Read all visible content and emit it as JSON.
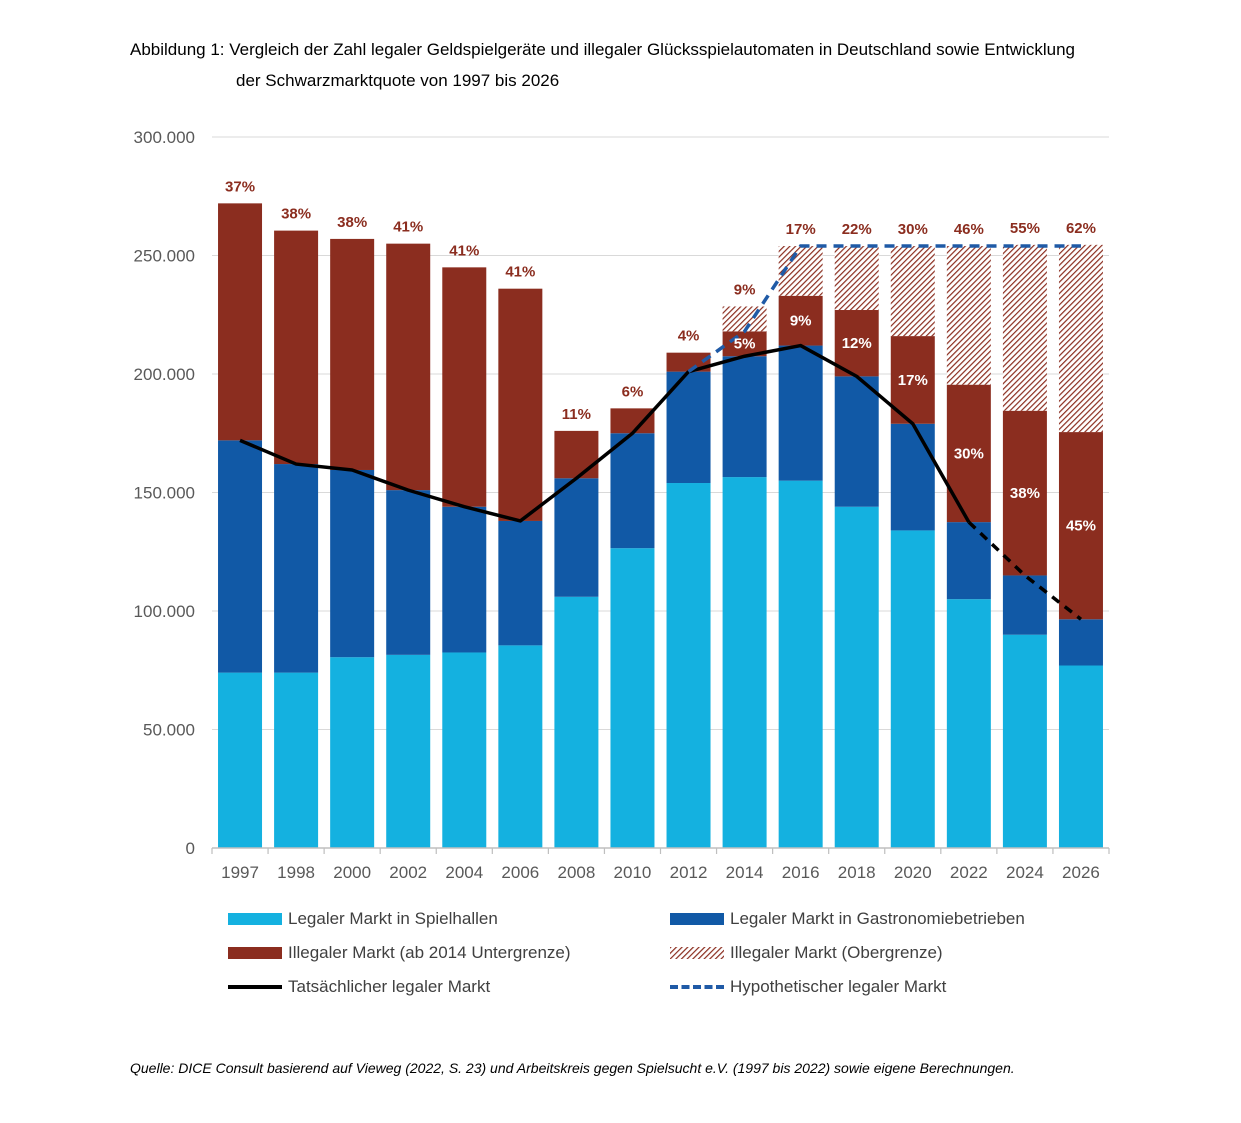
{
  "title_line1": "Abbildung 1: Vergleich der Zahl legaler Geldspielgeräte und illegaler Glücksspielautomaten in Deutschland sowie Entwicklung",
  "title_line2": "der Schwarzmarktquote von 1997 bis 2026",
  "source": "Quelle: DICE Consult basierend auf Vieweg (2022, S. 23) und Arbeitskreis gegen Spielsucht e.V. (1997 bis 2022) sowie eigene Berechnungen.",
  "colors": {
    "spielhallen": "#14b1e0",
    "gastronomie": "#1159a6",
    "illegal": "#8b2d1f",
    "hatch": "#8b2d1f",
    "line_actual": "#000000",
    "line_hypo": "#1f5aa6",
    "label_outside": "#8b2d1f",
    "label_inside": "#ffffff",
    "axis_text": "#595959",
    "grid": "#d9d9d9"
  },
  "legend": [
    {
      "label": "Legaler Markt in Spielhallen",
      "kind": "swatch",
      "color_key": "spielhallen"
    },
    {
      "label": "Legaler Markt in Gastronomiebetrieben",
      "kind": "swatch",
      "color_key": "gastronomie"
    },
    {
      "label": "Illegaler Markt (ab 2014 Untergrenze)",
      "kind": "swatch",
      "color_key": "illegal"
    },
    {
      "label": "Illegaler Markt (Obergrenze)",
      "kind": "hatch",
      "color_key": "hatch"
    },
    {
      "label": "Tatsächlicher legaler Markt",
      "kind": "line",
      "color_key": "line_actual"
    },
    {
      "label": "Hypothetischer legaler Markt",
      "kind": "dash",
      "color_key": "line_hypo"
    }
  ],
  "chart_data": {
    "type": "bar",
    "stacked": true,
    "categories": [
      "1997",
      "1998",
      "2000",
      "2002",
      "2004",
      "2006",
      "2008",
      "2010",
      "2012",
      "2014",
      "2016",
      "2018",
      "2020",
      "2022",
      "2024",
      "2026"
    ],
    "ylim": [
      0,
      300000
    ],
    "yticks": [
      "0",
      "50.000",
      "100.000",
      "150.000",
      "200.000",
      "250.000",
      "300.000"
    ],
    "ytick_values": [
      0,
      50000,
      100000,
      150000,
      200000,
      250000,
      300000
    ],
    "grid": true,
    "legend_position": "bottom",
    "series": [
      {
        "name": "Legaler Markt in Spielhallen",
        "values": [
          74000,
          74000,
          80500,
          81500,
          82500,
          85500,
          106000,
          126500,
          154000,
          156500,
          155000,
          144000,
          134000,
          105000,
          90000,
          77000
        ]
      },
      {
        "name": "Legaler Markt in Gastronomiebetrieben",
        "values": [
          98000,
          88000,
          79000,
          69500,
          61500,
          52500,
          50000,
          48500,
          47000,
          51000,
          57000,
          55000,
          45000,
          32500,
          25000,
          19500
        ]
      },
      {
        "name": "Illegaler Markt (ab 2014 Untergrenze)",
        "values": [
          100000,
          98500,
          97500,
          104000,
          101000,
          98000,
          20000,
          10500,
          8000,
          10500,
          21000,
          28000,
          37000,
          58000,
          69500,
          79000
        ]
      },
      {
        "name": "Illegaler Markt (Obergrenze)",
        "values": [
          0,
          0,
          0,
          0,
          0,
          0,
          0,
          0,
          0,
          10500,
          21000,
          27000,
          38000,
          58500,
          70000,
          79000
        ]
      }
    ],
    "line_series": [
      {
        "name": "Tatsächlicher legaler Markt",
        "points": [
          [
            "1997",
            172000
          ],
          [
            "1998",
            162000
          ],
          [
            "2000",
            159500
          ],
          [
            "2002",
            151000
          ],
          [
            "2004",
            144000
          ],
          [
            "2006",
            138000
          ],
          [
            "2008",
            156000
          ],
          [
            "2010",
            175000
          ],
          [
            "2012",
            201000
          ],
          [
            "2014",
            207500
          ],
          [
            "2016",
            212000
          ],
          [
            "2018",
            199000
          ],
          [
            "2020",
            179000
          ],
          [
            "2022",
            137500
          ]
        ]
      },
      {
        "name": "Tatsächlicher legaler Markt (Prognose)",
        "style": "dashed-black",
        "points": [
          [
            "2022",
            137500
          ],
          [
            "2024",
            115000
          ],
          [
            "2026",
            96500
          ]
        ]
      },
      {
        "name": "Hypothetischer legaler Markt",
        "points": [
          [
            "2012",
            201000
          ],
          [
            "2014",
            218000
          ],
          [
            "2016",
            254000
          ],
          [
            "2018",
            254000
          ],
          [
            "2020",
            254000
          ],
          [
            "2022",
            254000
          ],
          [
            "2024",
            254000
          ],
          [
            "2026",
            254000
          ]
        ]
      }
    ],
    "labels_top": [
      "37%",
      "38%",
      "38%",
      "41%",
      "41%",
      "41%",
      "11%",
      "6%",
      "4%",
      "9%",
      "17%",
      "22%",
      "30%",
      "46%",
      "55%",
      "62%"
    ],
    "labels_inner": [
      "",
      "",
      "",
      "",
      "",
      "",
      "",
      "",
      "",
      "5%",
      "9%",
      "12%",
      "17%",
      "30%",
      "38%",
      "45%"
    ]
  }
}
